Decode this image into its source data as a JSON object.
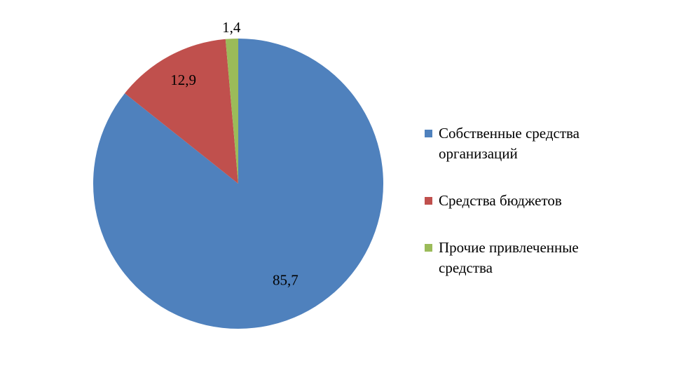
{
  "chart_data": {
    "type": "pie",
    "categories": [
      "Собственные средства организаций",
      "Средства бюджетов",
      "Прочие привлеченные средства"
    ],
    "values": [
      85.7,
      12.9,
      1.4
    ],
    "value_labels": [
      "85,7",
      "12,9",
      "1,4"
    ],
    "colors": [
      "#4f81bd",
      "#c0504d",
      "#9bbb59"
    ],
    "legend": "right"
  }
}
